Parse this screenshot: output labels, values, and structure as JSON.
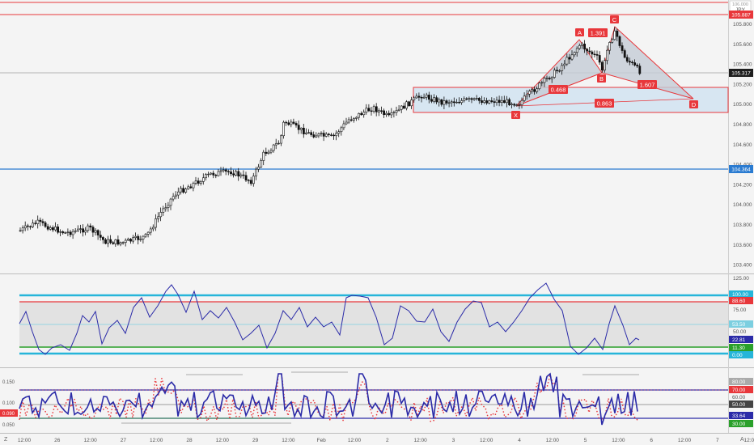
{
  "header": {
    "currency": "JPY",
    "top_price_tag": "106.000"
  },
  "colors": {
    "bull": "#ffffff",
    "bear": "#111111",
    "red_line": "#e8373b",
    "blue_line": "#2a7bd1",
    "pattern_fill": "#c4ccd6",
    "zone_fill": "#d7e6f2",
    "cyan": "#26b5d9",
    "green": "#2aa02a",
    "navy": "#2b2ba8"
  },
  "price_axis": {
    "ticks": [
      "105.800",
      "105.600",
      "105.400",
      "105.200",
      "105.000",
      "104.800",
      "104.600",
      "104.400",
      "104.200",
      "104.000",
      "103.800",
      "103.600",
      "103.400"
    ],
    "tags": {
      "red_top": "105.887",
      "current": "105.317",
      "blue": "104.364"
    }
  },
  "harmonic": {
    "points": {
      "X": "X",
      "A": "A",
      "B": "B",
      "C": "C",
      "D": "D"
    },
    "ratios": {
      "xb": "0.468",
      "ac": "1.391",
      "bd": "1.607",
      "xd": "0.863"
    }
  },
  "oscillator1": {
    "ticks": [
      "125.00",
      "100.00",
      "75.00",
      "50.00",
      "25.00"
    ],
    "tags": {
      "upper_cyan": "100.00",
      "upper_red": "88.60",
      "mid": "53.50",
      "value": "22.81",
      "lower_green": "11.30",
      "lower_cyan": "0.00"
    }
  },
  "oscillator2": {
    "left_ticks": [
      "0.150",
      "0.100",
      "0.050"
    ],
    "left_tag": "0.090",
    "ticks": [
      "90.00",
      "60.00",
      "40.00"
    ],
    "tags": {
      "t80": "80.00",
      "t70": "70.00",
      "t50": "50.00",
      "value": "33.64",
      "t30": "30.00"
    }
  },
  "time_axis": {
    "labels": [
      "12:00",
      "26",
      "12:00",
      "27",
      "12:00",
      "28",
      "12:00",
      "29",
      "12:00",
      "Feb",
      "12:00",
      "2",
      "12:00",
      "3",
      "12:00",
      "4",
      "12:00",
      "5",
      "12:00",
      "6",
      "12:00",
      "7",
      "12:00",
      "8",
      "12:00",
      "9"
    ]
  },
  "corner_icons": {
    "left": "Z",
    "right": "A"
  }
}
